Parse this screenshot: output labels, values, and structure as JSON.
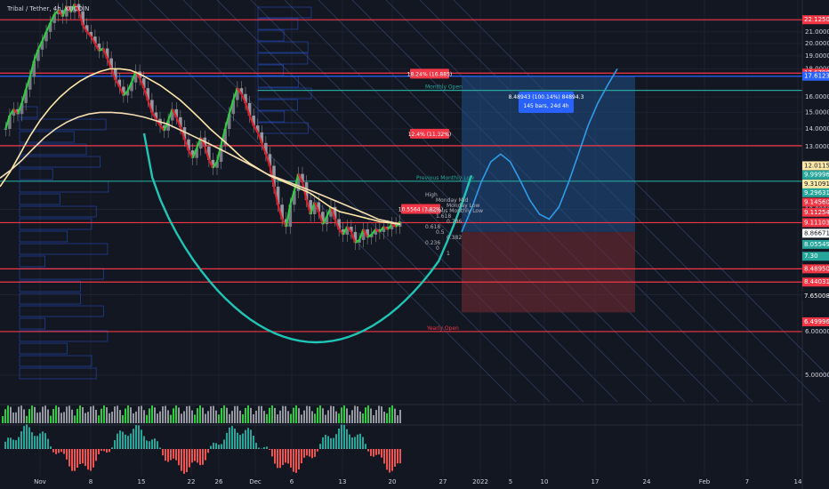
{
  "header": {
    "symbol": "Tribal / Tether, 4h, KUCOIN"
  },
  "colors": {
    "background": "#131722",
    "hline": "#f23645",
    "blue_line": "#2962ff",
    "green_line": "#26a69a",
    "ma_yellow": "#ffe9a8",
    "arc_teal": "#1fc5b5",
    "projection": "#2f9ce8",
    "up": "#26a69a",
    "down": "#ef5350"
  },
  "chart_data": {
    "type": "line",
    "title": "",
    "price_axis": {
      "ticks": [
        "22.00000",
        "21.00000",
        "20.00000",
        "19.00000",
        "18.00000",
        "16.00000",
        "15.00000",
        "14.00000",
        "13.00000",
        "10.00000",
        "7.00000",
        "6.00000",
        "5.00000"
      ],
      "ylim": [
        4.0,
        24.0
      ]
    },
    "time_axis": {
      "ticks": [
        "Nov",
        "8",
        "15",
        "22",
        "26",
        "Dec",
        "6",
        "13",
        "20",
        "27",
        "2022",
        "5",
        "10",
        "17",
        "24",
        "Feb",
        "7",
        "14"
      ]
    },
    "price_tags": [
      {
        "text": "22.12507",
        "price": 22.1,
        "color": "#f23645"
      },
      {
        "text": "17.67907",
        "price": 17.68,
        "color": "#f23645"
      },
      {
        "text": "17.61236",
        "price": 17.45,
        "color": "#2962ff"
      },
      {
        "text": "12.01154",
        "price": 12.0,
        "color": "#ffe9a8"
      },
      {
        "text": "9.99996",
        "price": 11.55,
        "color": "#26a69a"
      },
      {
        "text": "9.31091",
        "price": 11.12,
        "color": "#ffe9a8"
      },
      {
        "text": "9.29631",
        "price": 10.72,
        "color": "#26a69a"
      },
      {
        "text": "9.14560",
        "price": 10.3,
        "color": "#f23645"
      },
      {
        "text": "9.11254",
        "price": 9.88,
        "color": "#f23645"
      },
      {
        "text": "9.11103",
        "price": 9.46,
        "color": "#f23645"
      },
      {
        "text": "8.86671",
        "price": 9.05,
        "color": "#ffffff"
      },
      {
        "text": "8.05549",
        "price": 8.64,
        "color": "#26a69a"
      },
      {
        "text": "7.30",
        "price": 8.22,
        "color": "#26a69a"
      },
      {
        "text": "8.48950",
        "price": 7.8,
        "color": "#f23645"
      },
      {
        "text": "8.44031",
        "price": 7.38,
        "color": "#f23645"
      },
      {
        "text": "7.65008",
        "price": 6.96,
        "color": "#131722"
      },
      {
        "text": "6.49996",
        "price": 6.25,
        "color": "#f23645"
      }
    ],
    "levels": [
      {
        "name": "",
        "price": 22.1,
        "color": "#f23645"
      },
      {
        "name": "",
        "price": 17.68,
        "color": "#f23645"
      },
      {
        "name": "",
        "price": 17.45,
        "color": "#2962ff"
      },
      {
        "name": "Monthly Open",
        "price": 16.45,
        "color": "#26a69a"
      },
      {
        "name": "",
        "price": 13.05,
        "color": "#f23645"
      },
      {
        "name": "Previous Monthly Low",
        "price": 11.25,
        "color": "#26a69a"
      },
      {
        "name": "",
        "price": 9.46,
        "color": "#f23645"
      },
      {
        "name": "",
        "price": 7.8,
        "color": "#f23645"
      },
      {
        "name": "",
        "price": 7.38,
        "color": "#f23645"
      },
      {
        "name": "Yearly Open",
        "price": 6.0,
        "color": "#f23645"
      }
    ],
    "small_labels": [
      "High",
      "Monday Mid",
      "Monday Low",
      "Previous Monthly Low",
      "1.618",
      "0.786",
      "0.618",
      "0.5",
      "0.382",
      "0.236",
      "0",
      "1"
    ],
    "callouts": [
      {
        "text": "18.24% (16.885)",
        "price": 17.6,
        "color": "#f23645"
      },
      {
        "text": "12.4% (11.32%)",
        "price": 13.7,
        "color": "#f23645"
      },
      {
        "text": "10.5564 (7.82%)",
        "price": 10.0,
        "color": "#f23645"
      }
    ],
    "position_box": {
      "entry": 9.1,
      "target": 17.45,
      "stop": 6.5,
      "text1": "8.48943 (100.14%) 84894.3",
      "text2": "145 bars, 24d 4h"
    },
    "series": [
      {
        "name": "",
        "type": "candles",
        "values": [
          14.0,
          14.8,
          15.2,
          14.9,
          15.6,
          16.5,
          17.4,
          18.6,
          19.5,
          20.2,
          21.0,
          21.8,
          22.6,
          23.0,
          22.4,
          23.4,
          22.8,
          23.6,
          22.9,
          21.6,
          21.0,
          20.6,
          20.0,
          19.4,
          19.6,
          18.8,
          18.0,
          17.2,
          16.7,
          16.1,
          16.4,
          17.0,
          17.8,
          17.3,
          16.6,
          15.8,
          15.0,
          14.6,
          14.2,
          13.9,
          14.5,
          15.2,
          14.7,
          14.1,
          13.4,
          12.8,
          12.4,
          12.9,
          13.5,
          13.0,
          12.3,
          11.9,
          12.2,
          13.1,
          14.0,
          14.9,
          15.8,
          16.6,
          16.2,
          15.6,
          14.8,
          14.2,
          13.8,
          13.2,
          12.6,
          12.0,
          11.0,
          10.2,
          9.6,
          9.3,
          10.2,
          10.8,
          11.6,
          11.2,
          10.4,
          9.8,
          10.3,
          9.9,
          9.4,
          9.7,
          10.1,
          9.6,
          9.2,
          9.0,
          9.3,
          9.1,
          8.7,
          8.8,
          9.2,
          8.9,
          9.0,
          9.2,
          9.1,
          9.3,
          9.2,
          9.4,
          9.3,
          9.5
        ]
      },
      {
        "name": "",
        "type": "line",
        "values": [
          11.0,
          11.7,
          12.6,
          13.6,
          14.5,
          15.3,
          16.0,
          16.6,
          17.1,
          17.5,
          17.8,
          18.0,
          18.0,
          17.9,
          17.6,
          17.2,
          16.8,
          16.3,
          15.8,
          15.2,
          14.6,
          14.0,
          13.5,
          13.0,
          12.5,
          12.1,
          11.8,
          11.5,
          11.3,
          11.1,
          10.9,
          10.7,
          10.4,
          10.1,
          9.9,
          9.8,
          9.7,
          9.6,
          9.5,
          9.45,
          9.4
        ]
      },
      {
        "name": "",
        "type": "line",
        "values": [
          11.4,
          11.8,
          12.3,
          12.9,
          13.5,
          14.0,
          14.4,
          14.7,
          14.9,
          15.0,
          15.0,
          14.95,
          14.85,
          14.7,
          14.5,
          14.3,
          14.0,
          13.7,
          13.4,
          13.1,
          12.8,
          12.5,
          12.2,
          11.9,
          11.6,
          11.4,
          11.2,
          11.0,
          10.8,
          10.6,
          10.4,
          10.2,
          10.0,
          9.8,
          9.6,
          9.5,
          9.4
        ]
      },
      {
        "name": "",
        "type": "projection",
        "values": [
          9.1,
          10.0,
          11.2,
          12.2,
          12.6,
          12.2,
          11.3,
          10.4,
          9.8,
          9.6,
          10.1,
          11.2,
          12.6,
          14.2,
          15.6,
          16.8,
          18.0
        ]
      }
    ]
  }
}
